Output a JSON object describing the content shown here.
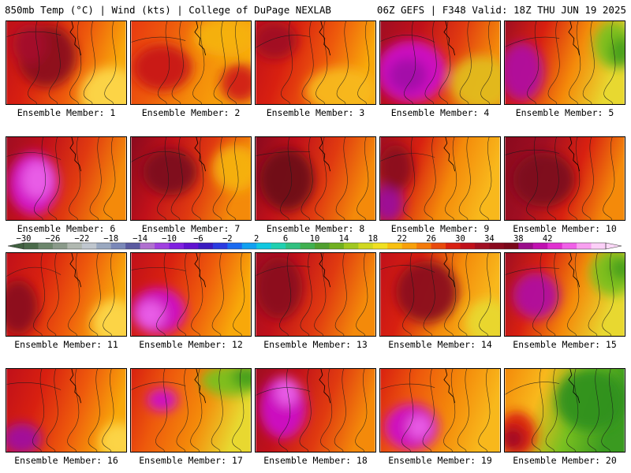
{
  "header": {
    "left": "850mb Temp (°C) | Wind (kts) | College of DuPage NEXLAB",
    "right": "06Z GEFS | F348 Valid: 18Z THU JUN 19 2025"
  },
  "members": [
    {
      "caption": "Ensemble Member: 1",
      "palette": [
        "#c0101a",
        "#d82010",
        "#ee5a0c",
        "#f8a80a"
      ],
      "blobs": [
        [
          "#8a0a1e",
          52,
          45,
          38,
          40
        ],
        [
          "#a4102a",
          30,
          30,
          22,
          26
        ],
        [
          "#fcd64a",
          135,
          95,
          40,
          35
        ]
      ]
    },
    {
      "caption": "Ensemble Member: 2",
      "palette": [
        "#e83a10",
        "#ee5a0c",
        "#f48a0a",
        "#f8a80a"
      ],
      "blobs": [
        [
          "#c81418",
          40,
          60,
          38,
          30
        ],
        [
          "#f6b210",
          120,
          20,
          40,
          25
        ],
        [
          "#d02018",
          140,
          80,
          25,
          25
        ]
      ]
    },
    {
      "caption": "Ensemble Member: 3",
      "palette": [
        "#c0101a",
        "#d82010",
        "#ee5a0c",
        "#f8a80a"
      ],
      "blobs": [
        [
          "#a00e22",
          25,
          25,
          28,
          24
        ],
        [
          "#f8b81c",
          110,
          90,
          45,
          30
        ]
      ]
    },
    {
      "caption": "Ensemble Member: 4",
      "palette": [
        "#a00e22",
        "#c0101a",
        "#e03a10",
        "#f48a0a"
      ],
      "blobs": [
        [
          "#cc10c8",
          40,
          65,
          45,
          40
        ],
        [
          "#a210a8",
          35,
          70,
          25,
          22
        ],
        [
          "#e2ba20",
          130,
          80,
          40,
          35
        ]
      ]
    },
    {
      "caption": "Ensemble Member: 5",
      "palette": [
        "#a00e22",
        "#d82010",
        "#f48a0a",
        "#e8d830"
      ],
      "blobs": [
        [
          "#b010a0",
          22,
          65,
          28,
          38
        ],
        [
          "#7ac020",
          140,
          30,
          25,
          30
        ],
        [
          "#48a020",
          150,
          40,
          15,
          20
        ]
      ]
    },
    {
      "caption": "Ensemble Member: 6",
      "palette": [
        "#a00e22",
        "#c0101a",
        "#e03a10",
        "#f48a0a"
      ],
      "blobs": [
        [
          "#d418d0",
          35,
          60,
          32,
          40
        ],
        [
          "#ea60e8",
          40,
          55,
          20,
          24
        ]
      ]
    },
    {
      "caption": "Ensemble Member: 7",
      "palette": [
        "#8a0a1e",
        "#c0101a",
        "#e03a10",
        "#f48a0a"
      ],
      "blobs": [
        [
          "#7c081a",
          50,
          45,
          35,
          30
        ],
        [
          "#f6b210",
          135,
          40,
          30,
          30
        ]
      ]
    },
    {
      "caption": "Ensemble Member: 8",
      "palette": [
        "#8a0a1e",
        "#c0101a",
        "#e03a10",
        "#f48a0a"
      ],
      "blobs": [
        [
          "#6e0818",
          40,
          55,
          35,
          40
        ]
      ]
    },
    {
      "caption": "Ensemble Member: 9",
      "palette": [
        "#a00e22",
        "#d82010",
        "#f48a0a",
        "#f8b81c"
      ],
      "blobs": [
        [
          "#9c0c9c",
          10,
          85,
          20,
          25
        ],
        [
          "#8a0a1e",
          20,
          40,
          22,
          30
        ]
      ]
    },
    {
      "caption": "Ensemble Member: 10",
      "palette": [
        "#8a0a1e",
        "#a00e22",
        "#d82010",
        "#f48a0a"
      ],
      "blobs": [
        [
          "#7c081a",
          50,
          55,
          40,
          35
        ]
      ]
    },
    {
      "caption": "Ensemble Member: 11",
      "palette": [
        "#c0101a",
        "#d82010",
        "#ee5a0c",
        "#f8a80a"
      ],
      "blobs": [
        [
          "#8a0a1e",
          15,
          70,
          25,
          35
        ],
        [
          "#fcd64a",
          140,
          90,
          30,
          30
        ]
      ]
    },
    {
      "caption": "Ensemble Member: 12",
      "palette": [
        "#c0101a",
        "#d82010",
        "#ee5a0c",
        "#f8a80a"
      ],
      "blobs": [
        [
          "#cc10c8",
          35,
          75,
          35,
          30
        ],
        [
          "#ea60e8",
          25,
          80,
          18,
          18
        ]
      ]
    },
    {
      "caption": "Ensemble Member: 13",
      "palette": [
        "#a00e22",
        "#c0101a",
        "#e03a10",
        "#f48a0a"
      ],
      "blobs": [
        [
          "#8a0a1e",
          30,
          45,
          30,
          40
        ]
      ]
    },
    {
      "caption": "Ensemble Member: 14",
      "palette": [
        "#c0101a",
        "#d82010",
        "#f48a0a",
        "#f8b81c"
      ],
      "blobs": [
        [
          "#8a0a1e",
          60,
          50,
          40,
          40
        ],
        [
          "#e8d830",
          140,
          90,
          30,
          30
        ]
      ]
    },
    {
      "caption": "Ensemble Member: 15",
      "palette": [
        "#a00e22",
        "#d82010",
        "#f48a0a",
        "#e8d830"
      ],
      "blobs": [
        [
          "#b010a0",
          40,
          55,
          30,
          30
        ],
        [
          "#7ac020",
          140,
          25,
          30,
          30
        ],
        [
          "#48a020",
          150,
          20,
          15,
          15
        ]
      ]
    },
    {
      "caption": "Ensemble Member: 16",
      "palette": [
        "#c0101a",
        "#d82010",
        "#ee5a0c",
        "#f8a80a"
      ],
      "blobs": [
        [
          "#a010a0",
          20,
          90,
          25,
          20
        ],
        [
          "#fcd64a",
          145,
          95,
          25,
          25
        ]
      ]
    },
    {
      "caption": "Ensemble Member: 17",
      "palette": [
        "#d82010",
        "#ee5a0c",
        "#f48a0a",
        "#e8d830"
      ],
      "blobs": [
        [
          "#7ac020",
          130,
          15,
          40,
          20
        ],
        [
          "#48a020",
          150,
          10,
          20,
          15
        ],
        [
          "#cc10c8",
          40,
          40,
          20,
          15
        ]
      ]
    },
    {
      "caption": "Ensemble Member: 18",
      "palette": [
        "#a00e22",
        "#c0101a",
        "#e03a10",
        "#f48a0a"
      ],
      "blobs": [
        [
          "#cc10c8",
          35,
          50,
          30,
          40
        ],
        [
          "#ea60e8",
          40,
          30,
          15,
          18
        ]
      ]
    },
    {
      "caption": "Ensemble Member: 19",
      "palette": [
        "#d82010",
        "#ee5a0c",
        "#f48a0a",
        "#f8b81c"
      ],
      "blobs": [
        [
          "#cc10c8",
          40,
          75,
          35,
          30
        ],
        [
          "#ea60e8",
          50,
          75,
          15,
          15
        ]
      ]
    },
    {
      "caption": "Ensemble Member: 20",
      "palette": [
        "#f48a0a",
        "#f8b81c",
        "#7ac020",
        "#3a9a20"
      ],
      "blobs": [
        [
          "#d82010",
          15,
          85,
          25,
          30
        ],
        [
          "#a00e22",
          10,
          90,
          15,
          15
        ],
        [
          "#30901c",
          110,
          40,
          45,
          40
        ]
      ]
    }
  ],
  "colorbar": {
    "labels": [
      "-30",
      "-26",
      "-22",
      "-18",
      "-14",
      "-10",
      "-6",
      "-2",
      "2",
      "6",
      "10",
      "14",
      "18",
      "22",
      "26",
      "30",
      "34",
      "38",
      "42"
    ],
    "colors": [
      "#4a6a4a",
      "#6c866c",
      "#8a9a8a",
      "#b0b8b0",
      "#bfc6ce",
      "#9aa8c0",
      "#7a88b8",
      "#5a5aa0",
      "#b070d0",
      "#a040e0",
      "#8020e0",
      "#6010d0",
      "#3a1ac0",
      "#2a3ae0",
      "#1a6af0",
      "#10a0f0",
      "#10c8e0",
      "#20d0b0",
      "#30c080",
      "#40b050",
      "#50a030",
      "#70b020",
      "#a0c820",
      "#d0d820",
      "#f0e020",
      "#f8c010",
      "#f8a00a",
      "#f47a0a",
      "#e84a0c",
      "#d82010",
      "#c0101a",
      "#a00e22",
      "#8a0a1e",
      "#7a081a",
      "#9a0c8a",
      "#c010b0",
      "#e030d0",
      "#f060e8",
      "#f8a0f0",
      "#fcd0f8"
    ],
    "arrow_left": "#406040",
    "arrow_right": "#fcd8f8"
  },
  "colors": {
    "background": "#ffffff",
    "contour": "#1a1a1a",
    "border": "#000000"
  }
}
